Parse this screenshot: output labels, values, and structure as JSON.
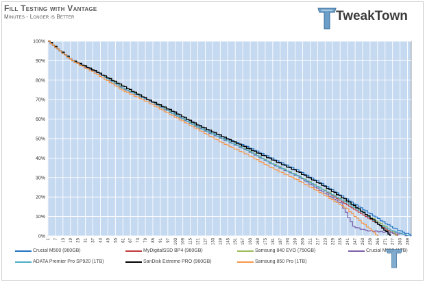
{
  "header": {
    "title": "Fill Testing with Vantage",
    "subtitle": "Minutes - Longer is Better",
    "logo_text": "TweakTown"
  },
  "chart_data": {
    "type": "line",
    "title": "Fill Testing with Vantage",
    "subtitle": "Minutes - Longer is Better",
    "xlabel": "",
    "ylabel": "",
    "xlim": [
      1,
      292
    ],
    "ylim": [
      0,
      100
    ],
    "y_ticks": [
      "0%",
      "10%",
      "20%",
      "30%",
      "40%",
      "50%",
      "60%",
      "70%",
      "80%",
      "90%",
      "100%"
    ],
    "x_ticks": [
      1,
      7,
      13,
      19,
      25,
      31,
      37,
      43,
      49,
      55,
      61,
      67,
      73,
      79,
      85,
      91,
      97,
      103,
      109,
      115,
      121,
      127,
      133,
      139,
      145,
      151,
      157,
      163,
      169,
      175,
      181,
      187,
      193,
      199,
      205,
      211,
      217,
      223,
      229,
      235,
      241,
      247,
      253,
      259,
      265,
      271,
      277,
      283,
      289
    ],
    "background": "#c5d9f1",
    "grid": true,
    "legend_position": "bottom",
    "series": [
      {
        "name": "Crucial M500 (960GB)",
        "color": "#1f72c4",
        "points": [
          [
            1,
            100
          ],
          [
            10,
            95
          ],
          [
            20,
            90
          ],
          [
            40,
            84
          ],
          [
            60,
            76
          ],
          [
            80,
            70
          ],
          [
            100,
            64
          ],
          [
            120,
            57
          ],
          [
            140,
            51
          ],
          [
            160,
            46
          ],
          [
            180,
            40
          ],
          [
            200,
            34
          ],
          [
            220,
            27
          ],
          [
            240,
            19
          ],
          [
            255,
            13
          ],
          [
            265,
            9
          ],
          [
            275,
            5
          ],
          [
            285,
            2
          ],
          [
            290,
            1
          ],
          [
            292,
            0
          ]
        ]
      },
      {
        "name": "MyDigitalSSD BP4 (960GB)",
        "color": "#c0393b",
        "points": [
          [
            1,
            100
          ],
          [
            10,
            95
          ],
          [
            20,
            90
          ],
          [
            40,
            84
          ],
          [
            60,
            76
          ],
          [
            80,
            70
          ],
          [
            100,
            63
          ],
          [
            120,
            56
          ],
          [
            140,
            50
          ],
          [
            160,
            44
          ],
          [
            180,
            37
          ],
          [
            200,
            31
          ],
          [
            220,
            24
          ],
          [
            240,
            16
          ],
          [
            255,
            10
          ],
          [
            265,
            6
          ],
          [
            275,
            2
          ],
          [
            281,
            0
          ]
        ]
      },
      {
        "name": "Samsung 840 EVO (750GB)",
        "color": "#9bbb59",
        "points": [
          [
            1,
            100
          ],
          [
            10,
            95
          ],
          [
            20,
            90
          ],
          [
            40,
            84
          ],
          [
            60,
            76
          ],
          [
            80,
            70
          ],
          [
            100,
            63
          ],
          [
            120,
            56
          ],
          [
            140,
            50
          ],
          [
            160,
            44
          ],
          [
            180,
            37
          ],
          [
            200,
            31
          ],
          [
            220,
            24
          ],
          [
            240,
            17
          ],
          [
            255,
            11
          ],
          [
            265,
            7
          ],
          [
            275,
            3
          ],
          [
            280,
            0
          ]
        ]
      },
      {
        "name": "Crucial M550 (1TB)",
        "color": "#7b5ea7",
        "points": [
          [
            1,
            100
          ],
          [
            10,
            95
          ],
          [
            20,
            90
          ],
          [
            40,
            84
          ],
          [
            60,
            76
          ],
          [
            80,
            70
          ],
          [
            100,
            63
          ],
          [
            120,
            56
          ],
          [
            140,
            50
          ],
          [
            160,
            44
          ],
          [
            180,
            37
          ],
          [
            200,
            31
          ],
          [
            220,
            23
          ],
          [
            235,
            17
          ],
          [
            245,
            5
          ],
          [
            255,
            3
          ],
          [
            275,
            2
          ],
          [
            285,
            1
          ],
          [
            289,
            0
          ]
        ]
      },
      {
        "name": "ADATA Premier Pro SP920 (1TB)",
        "color": "#4bacc6",
        "points": [
          [
            1,
            100
          ],
          [
            10,
            95
          ],
          [
            20,
            90
          ],
          [
            40,
            84
          ],
          [
            60,
            76
          ],
          [
            80,
            70
          ],
          [
            100,
            63
          ],
          [
            120,
            56
          ],
          [
            140,
            50
          ],
          [
            160,
            44
          ],
          [
            180,
            37
          ],
          [
            200,
            31
          ],
          [
            220,
            24
          ],
          [
            240,
            17
          ],
          [
            255,
            11
          ],
          [
            265,
            6
          ],
          [
            275,
            3
          ],
          [
            285,
            1
          ],
          [
            290,
            0
          ]
        ]
      },
      {
        "name": "SanDisk Extreme PRO (960GB)",
        "color": "#000000",
        "points": [
          [
            1,
            100
          ],
          [
            10,
            95
          ],
          [
            20,
            90
          ],
          [
            40,
            84
          ],
          [
            60,
            77
          ],
          [
            80,
            70
          ],
          [
            100,
            64
          ],
          [
            120,
            57
          ],
          [
            140,
            51
          ],
          [
            160,
            45
          ],
          [
            180,
            39
          ],
          [
            200,
            33
          ],
          [
            220,
            26
          ],
          [
            240,
            18
          ],
          [
            255,
            11
          ],
          [
            265,
            6
          ],
          [
            270,
            3
          ],
          [
            275,
            0
          ]
        ]
      },
      {
        "name": "Samsung 850 Pro (1TB)",
        "color": "#f79646",
        "points": [
          [
            1,
            100
          ],
          [
            10,
            95
          ],
          [
            20,
            90
          ],
          [
            40,
            83
          ],
          [
            60,
            75
          ],
          [
            80,
            69
          ],
          [
            100,
            62
          ],
          [
            120,
            55
          ],
          [
            140,
            48
          ],
          [
            160,
            42
          ],
          [
            180,
            35
          ],
          [
            200,
            29
          ],
          [
            220,
            22
          ],
          [
            240,
            14
          ],
          [
            250,
            8
          ],
          [
            258,
            4
          ],
          [
            265,
            0
          ]
        ]
      }
    ]
  }
}
